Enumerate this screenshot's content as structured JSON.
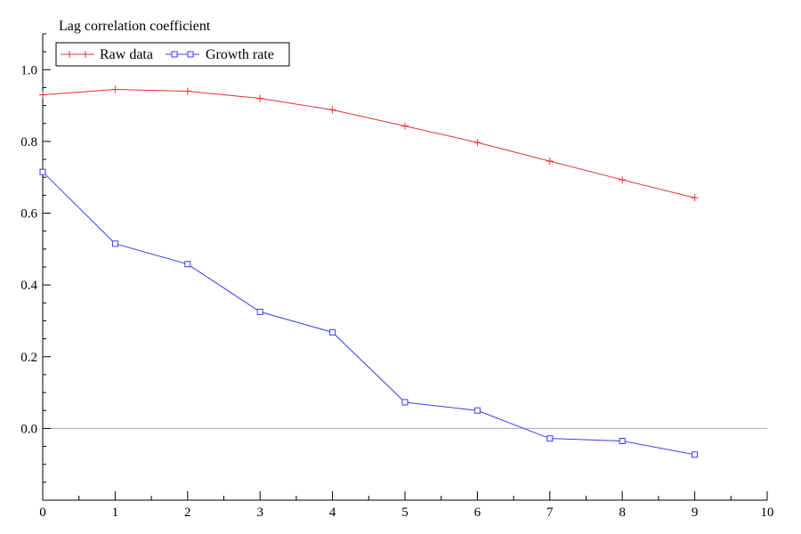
{
  "chart_data": {
    "type": "line",
    "title": "",
    "xlabel": "",
    "ylabel": "Lag correlation coefficient",
    "xlim": [
      0,
      10
    ],
    "ylim": [
      -0.2,
      1.1
    ],
    "x_ticks": [
      "0",
      "1",
      "2",
      "3",
      "4",
      "5",
      "6",
      "7",
      "8",
      "9",
      "10"
    ],
    "y_ticks": [
      "0.0",
      "0.2",
      "0.4",
      "0.6",
      "0.8",
      "1.0"
    ],
    "grid": false,
    "zero_line": true,
    "legend_position": "top-left",
    "series": [
      {
        "name": "Raw data",
        "color": "#e8302e",
        "marker": "plus",
        "x": [
          0,
          1,
          2,
          3,
          4,
          5,
          6,
          7,
          8,
          9
        ],
        "values": [
          0.93,
          0.945,
          0.94,
          0.92,
          0.888,
          0.843,
          0.797,
          0.745,
          0.693,
          0.643
        ]
      },
      {
        "name": "Growth rate",
        "color": "#3b3bf0",
        "marker": "square",
        "x": [
          0,
          1,
          2,
          3,
          4,
          5,
          6,
          7,
          8,
          9
        ],
        "values": [
          0.715,
          0.515,
          0.458,
          0.325,
          0.268,
          0.073,
          0.05,
          -0.028,
          -0.035,
          -0.073
        ]
      }
    ]
  }
}
